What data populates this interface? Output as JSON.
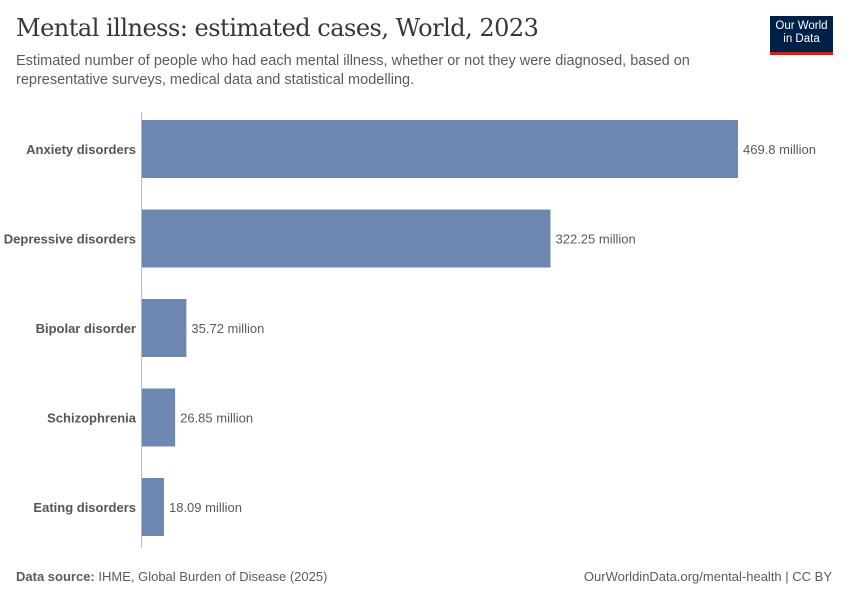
{
  "title": "Mental illness: estimated cases, World, 2023",
  "subtitle": "Estimated number of people who had each mental illness, whether or not they were diagnosed, based on representative surveys, medical data and statistical modelling.",
  "logo": {
    "line1": "Our World",
    "line2": "in Data"
  },
  "footer": {
    "source_label": "Data source:",
    "source": "IHME, Global Burden of Disease (2025)",
    "link": "OurWorldinData.org/mental-health | CC BY"
  },
  "colors": {
    "bar": "#6d87b0",
    "logo_bg": "#002147",
    "logo_accent": "#ce261e"
  },
  "chart_data": {
    "type": "bar",
    "orientation": "horizontal",
    "categories": [
      "Anxiety disorders",
      "Depressive disorders",
      "Bipolar disorder",
      "Schizophrenia",
      "Eating disorders"
    ],
    "values": [
      469.8,
      322.25,
      35.72,
      26.85,
      18.09
    ],
    "labels": [
      "469.8 million",
      "322.25 million",
      "35.72 million",
      "26.85 million",
      "18.09 million"
    ],
    "unit": "million",
    "xlim": [
      0,
      469.8
    ],
    "grid": false
  }
}
